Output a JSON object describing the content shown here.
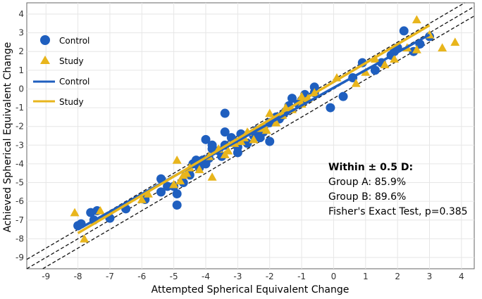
{
  "chart_data": {
    "type": "scatter",
    "xlabel": "Attempted Spherical Equivalent Change",
    "ylabel": "Achieved Spherical Equivalent Change",
    "xlim": [
      -9.6,
      4.4
    ],
    "ylim": [
      -9.6,
      4.6
    ],
    "xticks": [
      "-9",
      "-8",
      "-7",
      "-6",
      "-5",
      "-4",
      "-3",
      "-2",
      "-1",
      "0",
      "1",
      "2",
      "3",
      "4"
    ],
    "yticks": [
      "-9",
      "-8",
      "-7",
      "-6",
      "-5",
      "-4",
      "-3",
      "-2",
      "-1",
      "0",
      "1",
      "2",
      "3",
      "4"
    ],
    "grid": true,
    "legend_position": "top-left",
    "legend": {
      "items": [
        {
          "label": "Control",
          "kind": "circle",
          "color": "#1f5fbf"
        },
        {
          "label": "Study",
          "kind": "triangle",
          "color": "#e8b51c"
        },
        {
          "label": "Control",
          "kind": "line",
          "color": "#1f5fbf"
        },
        {
          "label": "Study",
          "kind": "line",
          "color": "#e8b51c"
        }
      ]
    },
    "reference_lines": [
      {
        "style": "dashed",
        "intercept": 0.5,
        "slope": 1
      },
      {
        "style": "dashed",
        "intercept": 0,
        "slope": 1
      },
      {
        "style": "dashed",
        "intercept": -0.5,
        "slope": 1
      }
    ],
    "series": [
      {
        "name": "Control",
        "marker": "circle",
        "color": "#1f5fbf",
        "fit": [
          [
            -8.0,
            -7.5
          ],
          [
            3.0,
            2.9
          ]
        ],
        "points": [
          [
            -8.0,
            -7.3
          ],
          [
            -7.9,
            -7.2
          ],
          [
            -7.6,
            -6.6
          ],
          [
            -7.4,
            -6.5
          ],
          [
            -7.5,
            -7.0
          ],
          [
            -7.0,
            -6.9
          ],
          [
            -6.5,
            -6.4
          ],
          [
            -5.9,
            -5.9
          ],
          [
            -5.4,
            -5.5
          ],
          [
            -5.4,
            -4.8
          ],
          [
            -5.2,
            -5.2
          ],
          [
            -5.0,
            -5.2
          ],
          [
            -4.9,
            -5.6
          ],
          [
            -4.9,
            -6.2
          ],
          [
            -4.7,
            -5.0
          ],
          [
            -4.5,
            -4.6
          ],
          [
            -4.2,
            -4.2
          ],
          [
            -4.1,
            -3.8
          ],
          [
            -4.0,
            -4.0
          ],
          [
            -3.9,
            -3.7
          ],
          [
            -3.8,
            -3.2
          ],
          [
            -3.6,
            -3.3
          ],
          [
            -3.5,
            -3.6
          ],
          [
            -3.4,
            -3.0
          ],
          [
            -3.4,
            -1.3
          ],
          [
            -3.4,
            -2.3
          ],
          [
            -3.2,
            -2.6
          ],
          [
            -3.1,
            -2.8
          ],
          [
            -3.0,
            -3.1
          ],
          [
            -3.0,
            -3.4
          ],
          [
            -2.9,
            -2.4
          ],
          [
            -2.7,
            -2.9
          ],
          [
            -2.5,
            -2.5
          ],
          [
            -2.4,
            -2.2
          ],
          [
            -2.3,
            -2.6
          ],
          [
            -2.2,
            -2.3
          ],
          [
            -2.0,
            -1.8
          ],
          [
            -2.0,
            -2.8
          ],
          [
            -1.8,
            -1.5
          ],
          [
            -1.7,
            -1.6
          ],
          [
            -1.6,
            -1.4
          ],
          [
            -1.5,
            -1.2
          ],
          [
            -1.4,
            -0.9
          ],
          [
            -1.3,
            -0.5
          ],
          [
            -1.1,
            -0.8
          ],
          [
            -1.0,
            -0.6
          ],
          [
            -0.9,
            -0.3
          ],
          [
            -0.6,
            -0.2
          ],
          [
            -0.6,
            0.1
          ],
          [
            -0.1,
            -1.0
          ],
          [
            0.3,
            -0.4
          ],
          [
            0.6,
            0.6
          ],
          [
            0.9,
            1.4
          ],
          [
            1.3,
            1.0
          ],
          [
            1.5,
            1.4
          ],
          [
            1.8,
            1.8
          ],
          [
            1.9,
            2.0
          ],
          [
            2.0,
            2.2
          ],
          [
            2.2,
            3.1
          ],
          [
            2.5,
            2.0
          ],
          [
            2.7,
            2.4
          ],
          [
            3.0,
            2.8
          ],
          [
            -4.0,
            -2.7
          ],
          [
            -3.8,
            -3.0
          ],
          [
            -4.4,
            -4.0
          ],
          [
            -4.3,
            -3.8
          ]
        ]
      },
      {
        "name": "Study",
        "marker": "triangle",
        "color": "#e8b51c",
        "fit": [
          [
            -8.0,
            -7.7
          ],
          [
            3.0,
            3.4
          ]
        ],
        "points": [
          [
            -8.1,
            -6.6
          ],
          [
            -7.8,
            -8.0
          ],
          [
            -7.3,
            -6.5
          ],
          [
            -6.0,
            -5.9
          ],
          [
            -5.8,
            -5.6
          ],
          [
            -5.0,
            -5.1
          ],
          [
            -4.8,
            -4.9
          ],
          [
            -4.9,
            -3.8
          ],
          [
            -4.5,
            -4.2
          ],
          [
            -4.2,
            -4.3
          ],
          [
            -3.9,
            -3.6
          ],
          [
            -3.8,
            -4.7
          ],
          [
            -3.6,
            -3.2
          ],
          [
            -3.4,
            -3.5
          ],
          [
            -3.3,
            -3.3
          ],
          [
            -3.1,
            -2.9
          ],
          [
            -2.9,
            -2.8
          ],
          [
            -2.8,
            -2.6
          ],
          [
            -2.7,
            -2.3
          ],
          [
            -2.5,
            -2.7
          ],
          [
            -2.3,
            -2.1
          ],
          [
            -2.2,
            -2.0
          ],
          [
            -2.0,
            -1.3
          ],
          [
            -1.8,
            -1.8
          ],
          [
            -1.6,
            -1.4
          ],
          [
            -1.5,
            -1.0
          ],
          [
            -1.3,
            -1.1
          ],
          [
            -1.0,
            -0.8
          ],
          [
            -1.0,
            -0.4
          ],
          [
            -0.8,
            -0.5
          ],
          [
            -0.6,
            -0.2
          ],
          [
            0.1,
            0.6
          ],
          [
            0.7,
            0.3
          ],
          [
            1.0,
            0.9
          ],
          [
            1.3,
            1.6
          ],
          [
            1.6,
            1.3
          ],
          [
            1.9,
            1.6
          ],
          [
            2.3,
            2.2
          ],
          [
            2.6,
            3.7
          ],
          [
            2.6,
            2.1
          ],
          [
            3.0,
            2.9
          ],
          [
            3.4,
            2.2
          ],
          [
            3.8,
            2.5
          ],
          [
            -4.6,
            -4.5
          ],
          [
            -4.7,
            -4.6
          ],
          [
            -2.1,
            -2.2
          ]
        ]
      }
    ],
    "annotation": {
      "title": "Within ± 0.5 D:",
      "lines": [
        "Group A: 85.9%",
        "Group B: 89.6%",
        "Fisher's Exact Test, p=0.385"
      ]
    }
  }
}
